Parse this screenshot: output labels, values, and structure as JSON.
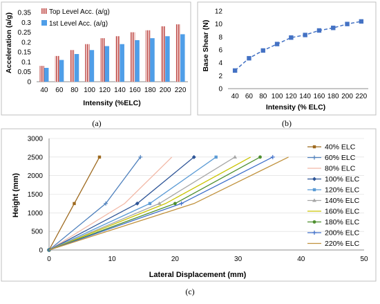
{
  "captions": {
    "a": "(a)",
    "b": "(b)",
    "c": "(c)"
  },
  "colors": {
    "top_level": "#c0504d",
    "first_level": "#4f9ee8",
    "base_shear": "#4472c4",
    "series_c": [
      "#9e6a1f",
      "#4f81bd",
      "#f2b8a6",
      "#2e5597",
      "#5b9bd5",
      "#a6a6a6",
      "#c9c400",
      "#4e8f2f",
      "#3d6ec9",
      "#c0913c"
    ]
  },
  "chart_data": [
    {
      "id": "a",
      "type": "bar",
      "xlabel": "Intensity (%ELC)",
      "ylabel": "Acceleration (a/g)",
      "categories": [
        "40",
        "60",
        "80",
        "100",
        "120",
        "140",
        "160",
        "180",
        "200",
        "220"
      ],
      "ylim": [
        0,
        0.35
      ],
      "yticks": [
        "0",
        "0.05",
        "0.1",
        "0.15",
        "0.2",
        "0.25",
        "0.3",
        "0.35"
      ],
      "grid": false,
      "legend_position": "top-left",
      "series": [
        {
          "name": "Top Level Acc. (a/g)",
          "values": [
            0.08,
            0.13,
            0.16,
            0.19,
            0.22,
            0.23,
            0.25,
            0.26,
            0.28,
            0.29
          ]
        },
        {
          "name": "1st Level Acc. (a/g)",
          "values": [
            0.07,
            0.11,
            0.14,
            0.16,
            0.18,
            0.19,
            0.21,
            0.22,
            0.23,
            0.24
          ]
        }
      ]
    },
    {
      "id": "b",
      "type": "line",
      "xlabel": "Intensity (% ELC)",
      "ylabel": "Base Shear (N)",
      "x": [
        40,
        60,
        80,
        100,
        120,
        140,
        160,
        180,
        200,
        220
      ],
      "y": [
        2.8,
        4.7,
        5.9,
        6.9,
        7.9,
        8.3,
        9.0,
        9.4,
        10.0,
        10.4
      ],
      "xlim": [
        30,
        230
      ],
      "ylim": [
        0,
        12
      ],
      "xticks": [
        "40",
        "60",
        "80",
        "100",
        "120",
        "140",
        "160",
        "180",
        "200",
        "220"
      ],
      "yticks": [
        "0",
        "2",
        "4",
        "6",
        "8",
        "10",
        "12"
      ],
      "grid": false
    },
    {
      "id": "c",
      "type": "line",
      "xlabel": "Lateral Displacement  (mm)",
      "ylabel": "Height (mm)",
      "xlim": [
        0,
        50
      ],
      "ylim": [
        0,
        3000
      ],
      "xticks": [
        "0",
        "10",
        "20",
        "30",
        "40",
        "50"
      ],
      "yticks": [
        "0",
        "500",
        "1000",
        "1500",
        "2000",
        "2500",
        "3000"
      ],
      "grid": true,
      "legend_position": "right",
      "y": [
        0,
        1250,
        2500
      ],
      "series": [
        {
          "name": "40% ELC",
          "x": [
            0,
            4,
            8
          ]
        },
        {
          "name": "60% ELC",
          "x": [
            0,
            9,
            14.5
          ]
        },
        {
          "name": "80% ELC",
          "x": [
            0,
            12,
            19.5
          ]
        },
        {
          "name": "100% ELC",
          "x": [
            0,
            14,
            23
          ]
        },
        {
          "name": "120% ELC",
          "x": [
            0,
            16,
            26.5
          ]
        },
        {
          "name": "140% ELC",
          "x": [
            0,
            17.5,
            29.5
          ]
        },
        {
          "name": "160% ELC",
          "x": [
            0,
            18.5,
            32
          ]
        },
        {
          "name": "180% ELC",
          "x": [
            0,
            20,
            33.5
          ]
        },
        {
          "name": "200% ELC",
          "x": [
            0,
            21,
            35.5
          ]
        },
        {
          "name": "220% ELC",
          "x": [
            0,
            23,
            38
          ]
        }
      ]
    }
  ]
}
